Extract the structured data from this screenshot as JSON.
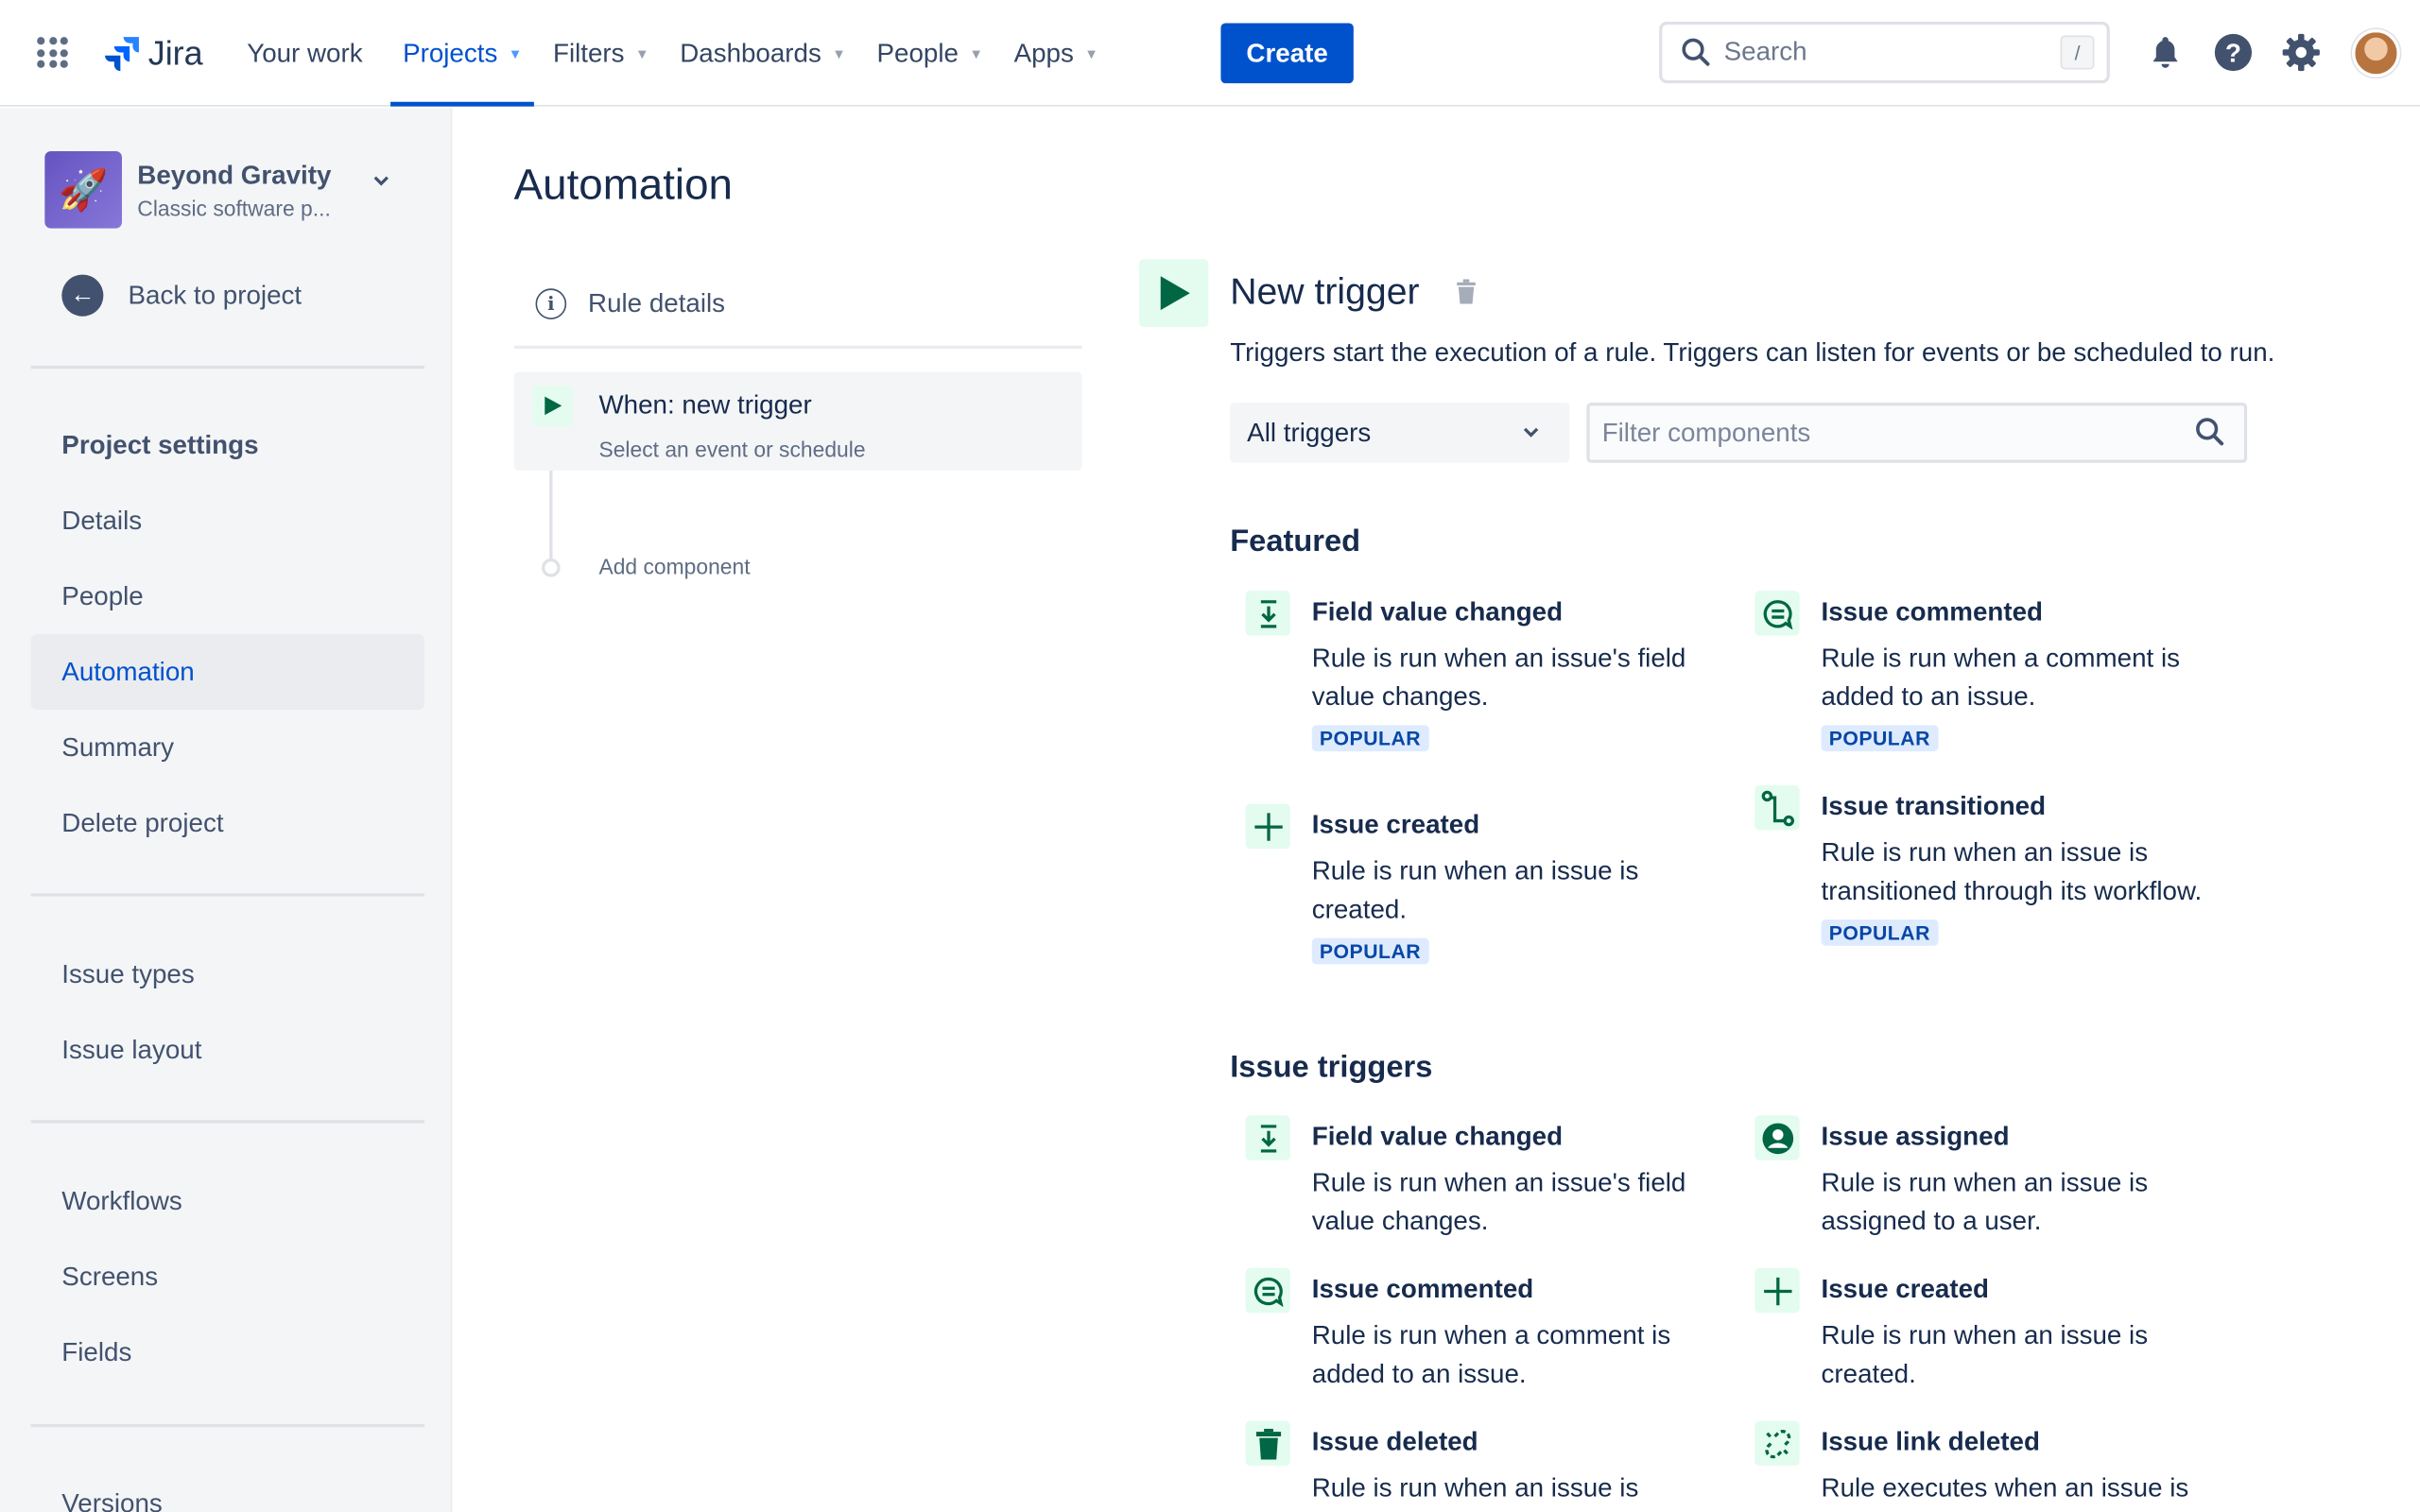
{
  "topnav": {
    "logo": "Jira",
    "items": [
      {
        "label": "Your work",
        "dropdown": false,
        "active": false
      },
      {
        "label": "Projects",
        "dropdown": true,
        "active": true
      },
      {
        "label": "Filters",
        "dropdown": true,
        "active": false
      },
      {
        "label": "Dashboards",
        "dropdown": true,
        "active": false
      },
      {
        "label": "People",
        "dropdown": true,
        "active": false
      },
      {
        "label": "Apps",
        "dropdown": true,
        "active": false
      }
    ],
    "create": "Create",
    "search_placeholder": "Search",
    "search_shortcut": "/"
  },
  "sidebar": {
    "project_name": "Beyond Gravity",
    "project_type": "Classic software p...",
    "back": "Back to project",
    "items": [
      "Project settings",
      "Details",
      "People",
      "Automation",
      "Summary",
      "Delete project",
      "Issue types",
      "Issue layout",
      "Workflows",
      "Screens",
      "Fields",
      "Versions"
    ],
    "active": "Automation"
  },
  "page": {
    "title": "Automation"
  },
  "rule": {
    "details": "Rule details",
    "when_title": "When: new trigger",
    "when_sub": "Select an event or schedule",
    "add_component": "Add component"
  },
  "trigger": {
    "title": "New trigger",
    "description": "Triggers start the execution of a rule. Triggers can listen for events or be scheduled to run.",
    "select_value": "All triggers",
    "filter_placeholder": "Filter components"
  },
  "featured": {
    "heading": "Featured",
    "badge": "POPULAR",
    "cards": [
      {
        "title": "Field value changed",
        "desc": "Rule is run when an issue's field value changes.",
        "icon": "field-changed-icon"
      },
      {
        "title": "Issue commented",
        "desc": "Rule is run when a comment is added to an issue.",
        "icon": "comment-icon"
      },
      {
        "title": "Issue created",
        "desc": "Rule is run when an issue is created.",
        "icon": "plus-icon"
      },
      {
        "title": "Issue transitioned",
        "desc": "Rule is run when an issue is transitioned through its workflow.",
        "icon": "transition-icon"
      }
    ]
  },
  "issue_triggers": {
    "heading": "Issue triggers",
    "cards": [
      {
        "title": "Field value changed",
        "desc": "Rule is run when an issue's field value changes.",
        "icon": "field-changed-icon"
      },
      {
        "title": "Issue assigned",
        "desc": "Rule is run when an issue is assigned to a user.",
        "icon": "user-icon"
      },
      {
        "title": "Issue commented",
        "desc": "Rule is run when a comment is added to an issue.",
        "icon": "comment-icon"
      },
      {
        "title": "Issue created",
        "desc": "Rule is run when an issue is created.",
        "icon": "plus-icon"
      },
      {
        "title": "Issue deleted",
        "desc": "Rule is run when an issue is",
        "icon": "trash-icon"
      },
      {
        "title": "Issue link deleted",
        "desc": "Rule executes when an issue is",
        "icon": "link-deleted-icon"
      }
    ]
  },
  "colors": {
    "brand": "#0052cc",
    "icon_green": "#006644",
    "icon_bg": "#e3fcef",
    "badge_bg": "#deebff",
    "badge_text": "#0747a6"
  }
}
